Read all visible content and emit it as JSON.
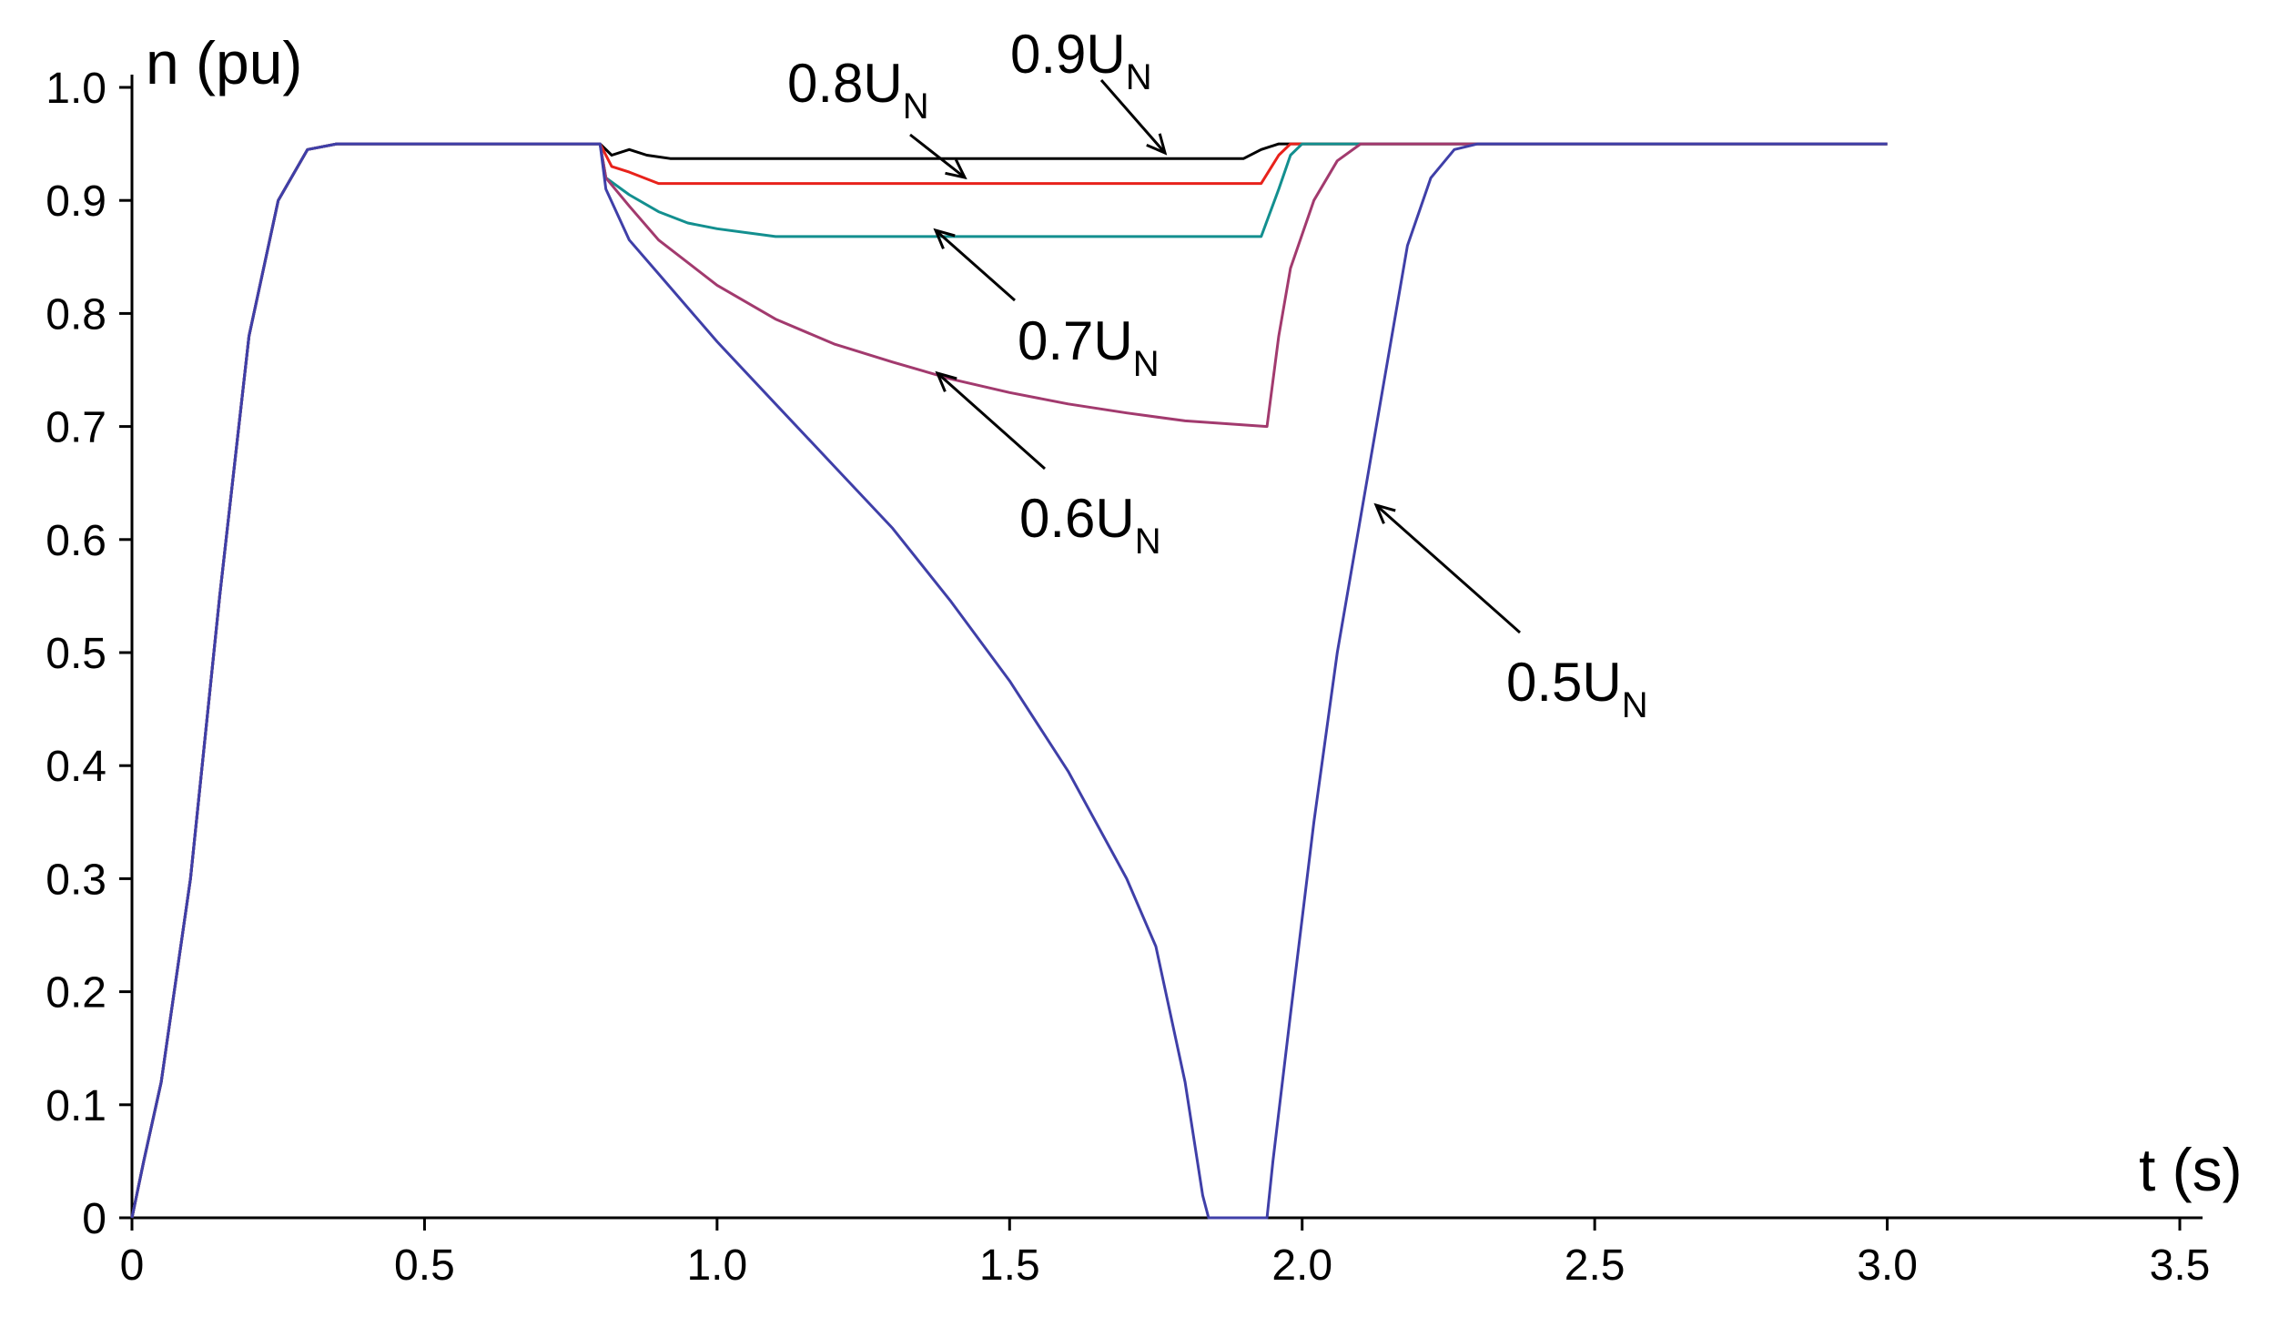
{
  "chart_data": {
    "type": "line",
    "title": "",
    "xlabel": "t (s)",
    "ylabel": "n (pu)",
    "xlim": [
      0,
      3.5
    ],
    "ylim": [
      0,
      1.0
    ],
    "x_ticks": [
      "0",
      "0.5",
      "1.0",
      "1.5",
      "2.0",
      "2.5",
      "3.0",
      "3.5"
    ],
    "y_ticks": [
      "0",
      "0.1",
      "0.2",
      "0.3",
      "0.4",
      "0.5",
      "0.6",
      "0.7",
      "0.8",
      "0.9",
      "1.0"
    ],
    "grid": false,
    "legend": "none",
    "series": [
      {
        "color": "#000000",
        "points": [
          [
            0,
            0
          ],
          [
            0.02,
            0.05
          ],
          [
            0.05,
            0.12
          ],
          [
            0.1,
            0.3
          ],
          [
            0.15,
            0.55
          ],
          [
            0.2,
            0.78
          ],
          [
            0.25,
            0.9
          ],
          [
            0.3,
            0.945
          ],
          [
            0.35,
            0.95
          ],
          [
            0.8,
            0.95
          ],
          [
            0.82,
            0.94
          ],
          [
            0.85,
            0.945
          ],
          [
            0.88,
            0.94
          ],
          [
            0.92,
            0.937
          ],
          [
            1.9,
            0.937
          ],
          [
            1.93,
            0.945
          ],
          [
            1.96,
            0.95
          ],
          [
            3.0,
            0.95
          ]
        ]
      },
      {
        "color": "#e8221b",
        "points": [
          [
            0,
            0
          ],
          [
            0.02,
            0.05
          ],
          [
            0.05,
            0.12
          ],
          [
            0.1,
            0.3
          ],
          [
            0.15,
            0.55
          ],
          [
            0.2,
            0.78
          ],
          [
            0.25,
            0.9
          ],
          [
            0.3,
            0.945
          ],
          [
            0.35,
            0.95
          ],
          [
            0.8,
            0.95
          ],
          [
            0.82,
            0.93
          ],
          [
            0.85,
            0.925
          ],
          [
            0.9,
            0.915
          ],
          [
            1.93,
            0.915
          ],
          [
            1.96,
            0.94
          ],
          [
            1.98,
            0.95
          ],
          [
            3.0,
            0.95
          ]
        ]
      },
      {
        "color": "#138f8f",
        "points": [
          [
            0,
            0
          ],
          [
            0.02,
            0.05
          ],
          [
            0.05,
            0.12
          ],
          [
            0.1,
            0.3
          ],
          [
            0.15,
            0.55
          ],
          [
            0.2,
            0.78
          ],
          [
            0.25,
            0.9
          ],
          [
            0.3,
            0.945
          ],
          [
            0.35,
            0.95
          ],
          [
            0.8,
            0.95
          ],
          [
            0.81,
            0.92
          ],
          [
            0.85,
            0.905
          ],
          [
            0.9,
            0.89
          ],
          [
            0.95,
            0.88
          ],
          [
            1.0,
            0.875
          ],
          [
            1.1,
            0.868
          ],
          [
            1.93,
            0.868
          ],
          [
            1.96,
            0.91
          ],
          [
            1.98,
            0.94
          ],
          [
            2.0,
            0.95
          ],
          [
            3.0,
            0.95
          ]
        ]
      },
      {
        "color": "#a23a6e",
        "points": [
          [
            0,
            0
          ],
          [
            0.02,
            0.05
          ],
          [
            0.05,
            0.12
          ],
          [
            0.1,
            0.3
          ],
          [
            0.15,
            0.55
          ],
          [
            0.2,
            0.78
          ],
          [
            0.25,
            0.9
          ],
          [
            0.3,
            0.945
          ],
          [
            0.35,
            0.95
          ],
          [
            0.8,
            0.95
          ],
          [
            0.81,
            0.92
          ],
          [
            0.85,
            0.895
          ],
          [
            0.9,
            0.865
          ],
          [
            1.0,
            0.825
          ],
          [
            1.1,
            0.795
          ],
          [
            1.2,
            0.773
          ],
          [
            1.3,
            0.757
          ],
          [
            1.4,
            0.742
          ],
          [
            1.5,
            0.73
          ],
          [
            1.6,
            0.72
          ],
          [
            1.7,
            0.712
          ],
          [
            1.8,
            0.705
          ],
          [
            1.94,
            0.7
          ],
          [
            1.96,
            0.78
          ],
          [
            1.98,
            0.84
          ],
          [
            2.02,
            0.9
          ],
          [
            2.06,
            0.935
          ],
          [
            2.1,
            0.95
          ],
          [
            3.0,
            0.95
          ]
        ]
      },
      {
        "color": "#3f3fa8",
        "points": [
          [
            0,
            0
          ],
          [
            0.02,
            0.05
          ],
          [
            0.05,
            0.12
          ],
          [
            0.1,
            0.3
          ],
          [
            0.15,
            0.55
          ],
          [
            0.2,
            0.78
          ],
          [
            0.25,
            0.9
          ],
          [
            0.3,
            0.945
          ],
          [
            0.35,
            0.95
          ],
          [
            0.8,
            0.95
          ],
          [
            0.81,
            0.91
          ],
          [
            0.85,
            0.865
          ],
          [
            0.9,
            0.835
          ],
          [
            1.0,
            0.775
          ],
          [
            1.1,
            0.72
          ],
          [
            1.2,
            0.665
          ],
          [
            1.3,
            0.61
          ],
          [
            1.4,
            0.545
          ],
          [
            1.5,
            0.475
          ],
          [
            1.6,
            0.395
          ],
          [
            1.7,
            0.3
          ],
          [
            1.75,
            0.24
          ],
          [
            1.8,
            0.12
          ],
          [
            1.83,
            0.02
          ],
          [
            1.84,
            0
          ],
          [
            1.94,
            0
          ],
          [
            1.95,
            0.05
          ],
          [
            1.98,
            0.18
          ],
          [
            2.02,
            0.35
          ],
          [
            2.06,
            0.5
          ],
          [
            2.1,
            0.62
          ],
          [
            2.14,
            0.74
          ],
          [
            2.18,
            0.86
          ],
          [
            2.22,
            0.92
          ],
          [
            2.26,
            0.945
          ],
          [
            2.3,
            0.95
          ],
          [
            3.0,
            0.95
          ]
        ]
      }
    ],
    "annotations": [
      {
        "base": "0.9U",
        "sub": "N"
      },
      {
        "base": "0.8U",
        "sub": "N"
      },
      {
        "base": "0.7U",
        "sub": "N"
      },
      {
        "base": "0.6U",
        "sub": "N"
      },
      {
        "base": "0.5U",
        "sub": "N"
      }
    ]
  }
}
